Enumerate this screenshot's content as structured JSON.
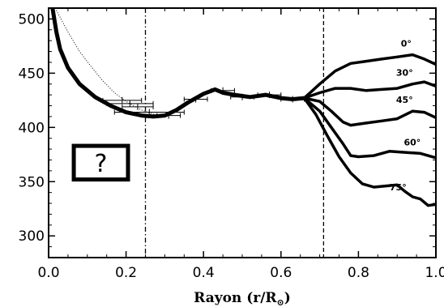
{
  "chart_data": {
    "type": "line",
    "title": "",
    "xlabel": "Rayon (r/R",
    "xlabel_sub": "⊙",
    "xlabel_close": ")",
    "ylabel": "",
    "xlim": [
      0.0,
      1.0
    ],
    "ylim": [
      280,
      510
    ],
    "x_ticks": [
      "0.0",
      "0.2",
      "0.4",
      "0.6",
      "0.8",
      "1.0"
    ],
    "x_tick_values": [
      0.0,
      0.2,
      0.4,
      0.6,
      0.8,
      1.0
    ],
    "y_ticks": [
      "300",
      "350",
      "400",
      "450",
      "500"
    ],
    "y_tick_values": [
      300,
      350,
      400,
      450,
      500
    ],
    "grid": false,
    "main_curve": {
      "x": [
        0.01,
        0.02,
        0.03,
        0.05,
        0.08,
        0.12,
        0.16,
        0.2,
        0.24,
        0.27,
        0.3,
        0.33,
        0.36,
        0.4,
        0.43,
        0.45,
        0.48,
        0.52,
        0.56,
        0.6,
        0.63,
        0.66
      ],
      "y": [
        510,
        488,
        472,
        455,
        440,
        428,
        420,
        414,
        411,
        410,
        411,
        416,
        423,
        431,
        435,
        432,
        430,
        428,
        430,
        427,
        426,
        427
      ]
    },
    "dotted_curve": {
      "x": [
        0.02,
        0.05,
        0.08,
        0.11,
        0.14,
        0.17,
        0.2,
        0.24,
        0.28
      ],
      "y": [
        508,
        488,
        470,
        456,
        443,
        432,
        424,
        416,
        411
      ]
    },
    "error_points": [
      {
        "x": 0.19,
        "y": 425,
        "xerr": 0.05
      },
      {
        "x": 0.21,
        "y": 422,
        "xerr": 0.06
      },
      {
        "x": 0.23,
        "y": 419,
        "xerr": 0.04
      },
      {
        "x": 0.26,
        "y": 414,
        "xerr": 0.09
      },
      {
        "x": 0.31,
        "y": 411,
        "xerr": 0.03
      },
      {
        "x": 0.38,
        "y": 426,
        "xerr": 0.03
      },
      {
        "x": 0.45,
        "y": 434,
        "xerr": 0.03
      },
      {
        "x": 0.5,
        "y": 428,
        "xerr": 0.03
      },
      {
        "x": 0.57,
        "y": 430,
        "xerr": 0.03
      },
      {
        "x": 0.63,
        "y": 426,
        "xerr": 0.03
      }
    ],
    "series": [
      {
        "name": "0°",
        "x": [
          0.66,
          0.7,
          0.74,
          0.78,
          0.82,
          0.86,
          0.9,
          0.94,
          0.97,
          1.0
        ],
        "y": [
          427,
          440,
          452,
          459,
          461,
          463,
          465,
          467,
          463,
          458
        ]
      },
      {
        "name": "30°",
        "x": [
          0.66,
          0.7,
          0.74,
          0.78,
          0.82,
          0.86,
          0.9,
          0.94,
          0.97,
          1.0
        ],
        "y": [
          427,
          432,
          436,
          436,
          434,
          435,
          436,
          440,
          442,
          438
        ]
      },
      {
        "name": "45°",
        "x": [
          0.66,
          0.7,
          0.73,
          0.76,
          0.78,
          0.82,
          0.86,
          0.9,
          0.94,
          0.97,
          1.0
        ],
        "y": [
          427,
          424,
          415,
          405,
          402,
          404,
          406,
          408,
          415,
          414,
          409
        ]
      },
      {
        "name": "60°",
        "x": [
          0.66,
          0.7,
          0.73,
          0.76,
          0.78,
          0.8,
          0.84,
          0.88,
          0.92,
          0.96,
          1.0
        ],
        "y": [
          427,
          415,
          400,
          385,
          374,
          373,
          374,
          378,
          377,
          376,
          372
        ]
      },
      {
        "name": "75°",
        "x": [
          0.66,
          0.69,
          0.72,
          0.75,
          0.78,
          0.81,
          0.84,
          0.87,
          0.9,
          0.92,
          0.94,
          0.96,
          0.98,
          1.0
        ],
        "y": [
          427,
          412,
          392,
          373,
          358,
          348,
          345,
          346,
          347,
          341,
          336,
          334,
          328,
          329
        ]
      }
    ],
    "annotations": [
      "0°",
      "30°",
      "45°",
      "60°",
      "75°"
    ],
    "vlines": [
      {
        "x": 0.25,
        "style": "dash-dot"
      },
      {
        "x": 0.71,
        "style": "dashed"
      }
    ],
    "inset_box": {
      "text": "?",
      "x_range": [
        0.065,
        0.205
      ],
      "y_range": [
        352,
        383
      ]
    }
  }
}
